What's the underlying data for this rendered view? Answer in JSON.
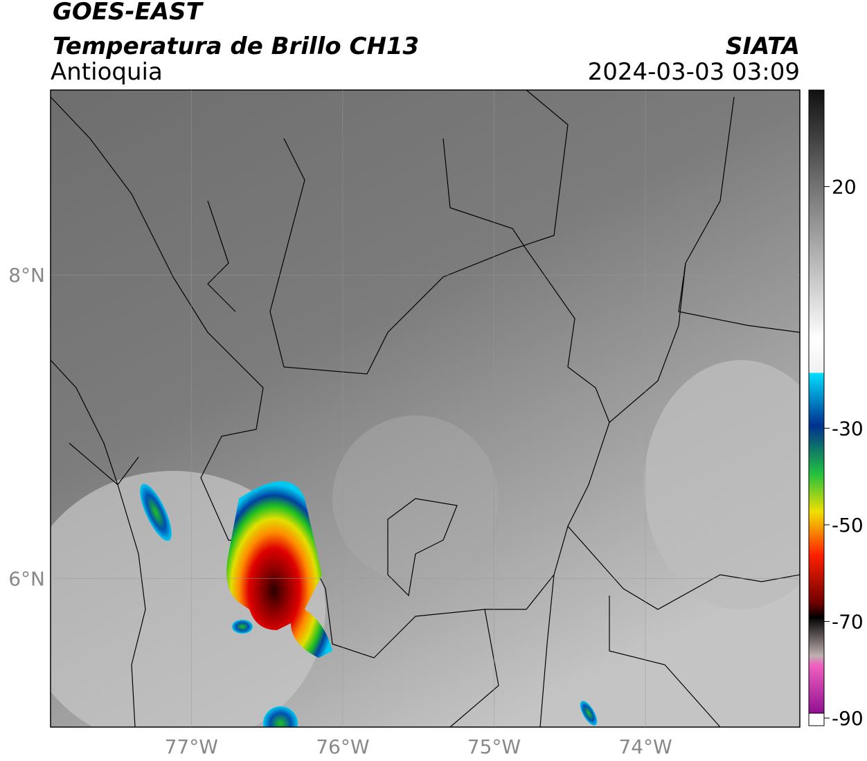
{
  "header": {
    "title": "GOES-EAST",
    "subtitle": "Temperatura de Brillo CH13",
    "region": "Antioquia",
    "source": "SIATA",
    "datetime": "2024-03-03 03:09"
  },
  "map": {
    "xlim": [
      -77.93,
      -72.98
    ],
    "ylim": [
      5.02,
      9.22
    ],
    "xticks": [
      {
        "value": -77,
        "label": "77°W"
      },
      {
        "value": -76,
        "label": "76°W"
      },
      {
        "value": -75,
        "label": "75°W"
      },
      {
        "value": -74,
        "label": "74°W"
      }
    ],
    "yticks": [
      {
        "value": 6,
        "label": "6°N"
      },
      {
        "value": 8,
        "label": "8°N"
      }
    ]
  },
  "colorbar": {
    "lim": [
      -90,
      40
    ],
    "ticks": [
      20,
      -30,
      -50,
      -70,
      -90
    ]
  }
}
